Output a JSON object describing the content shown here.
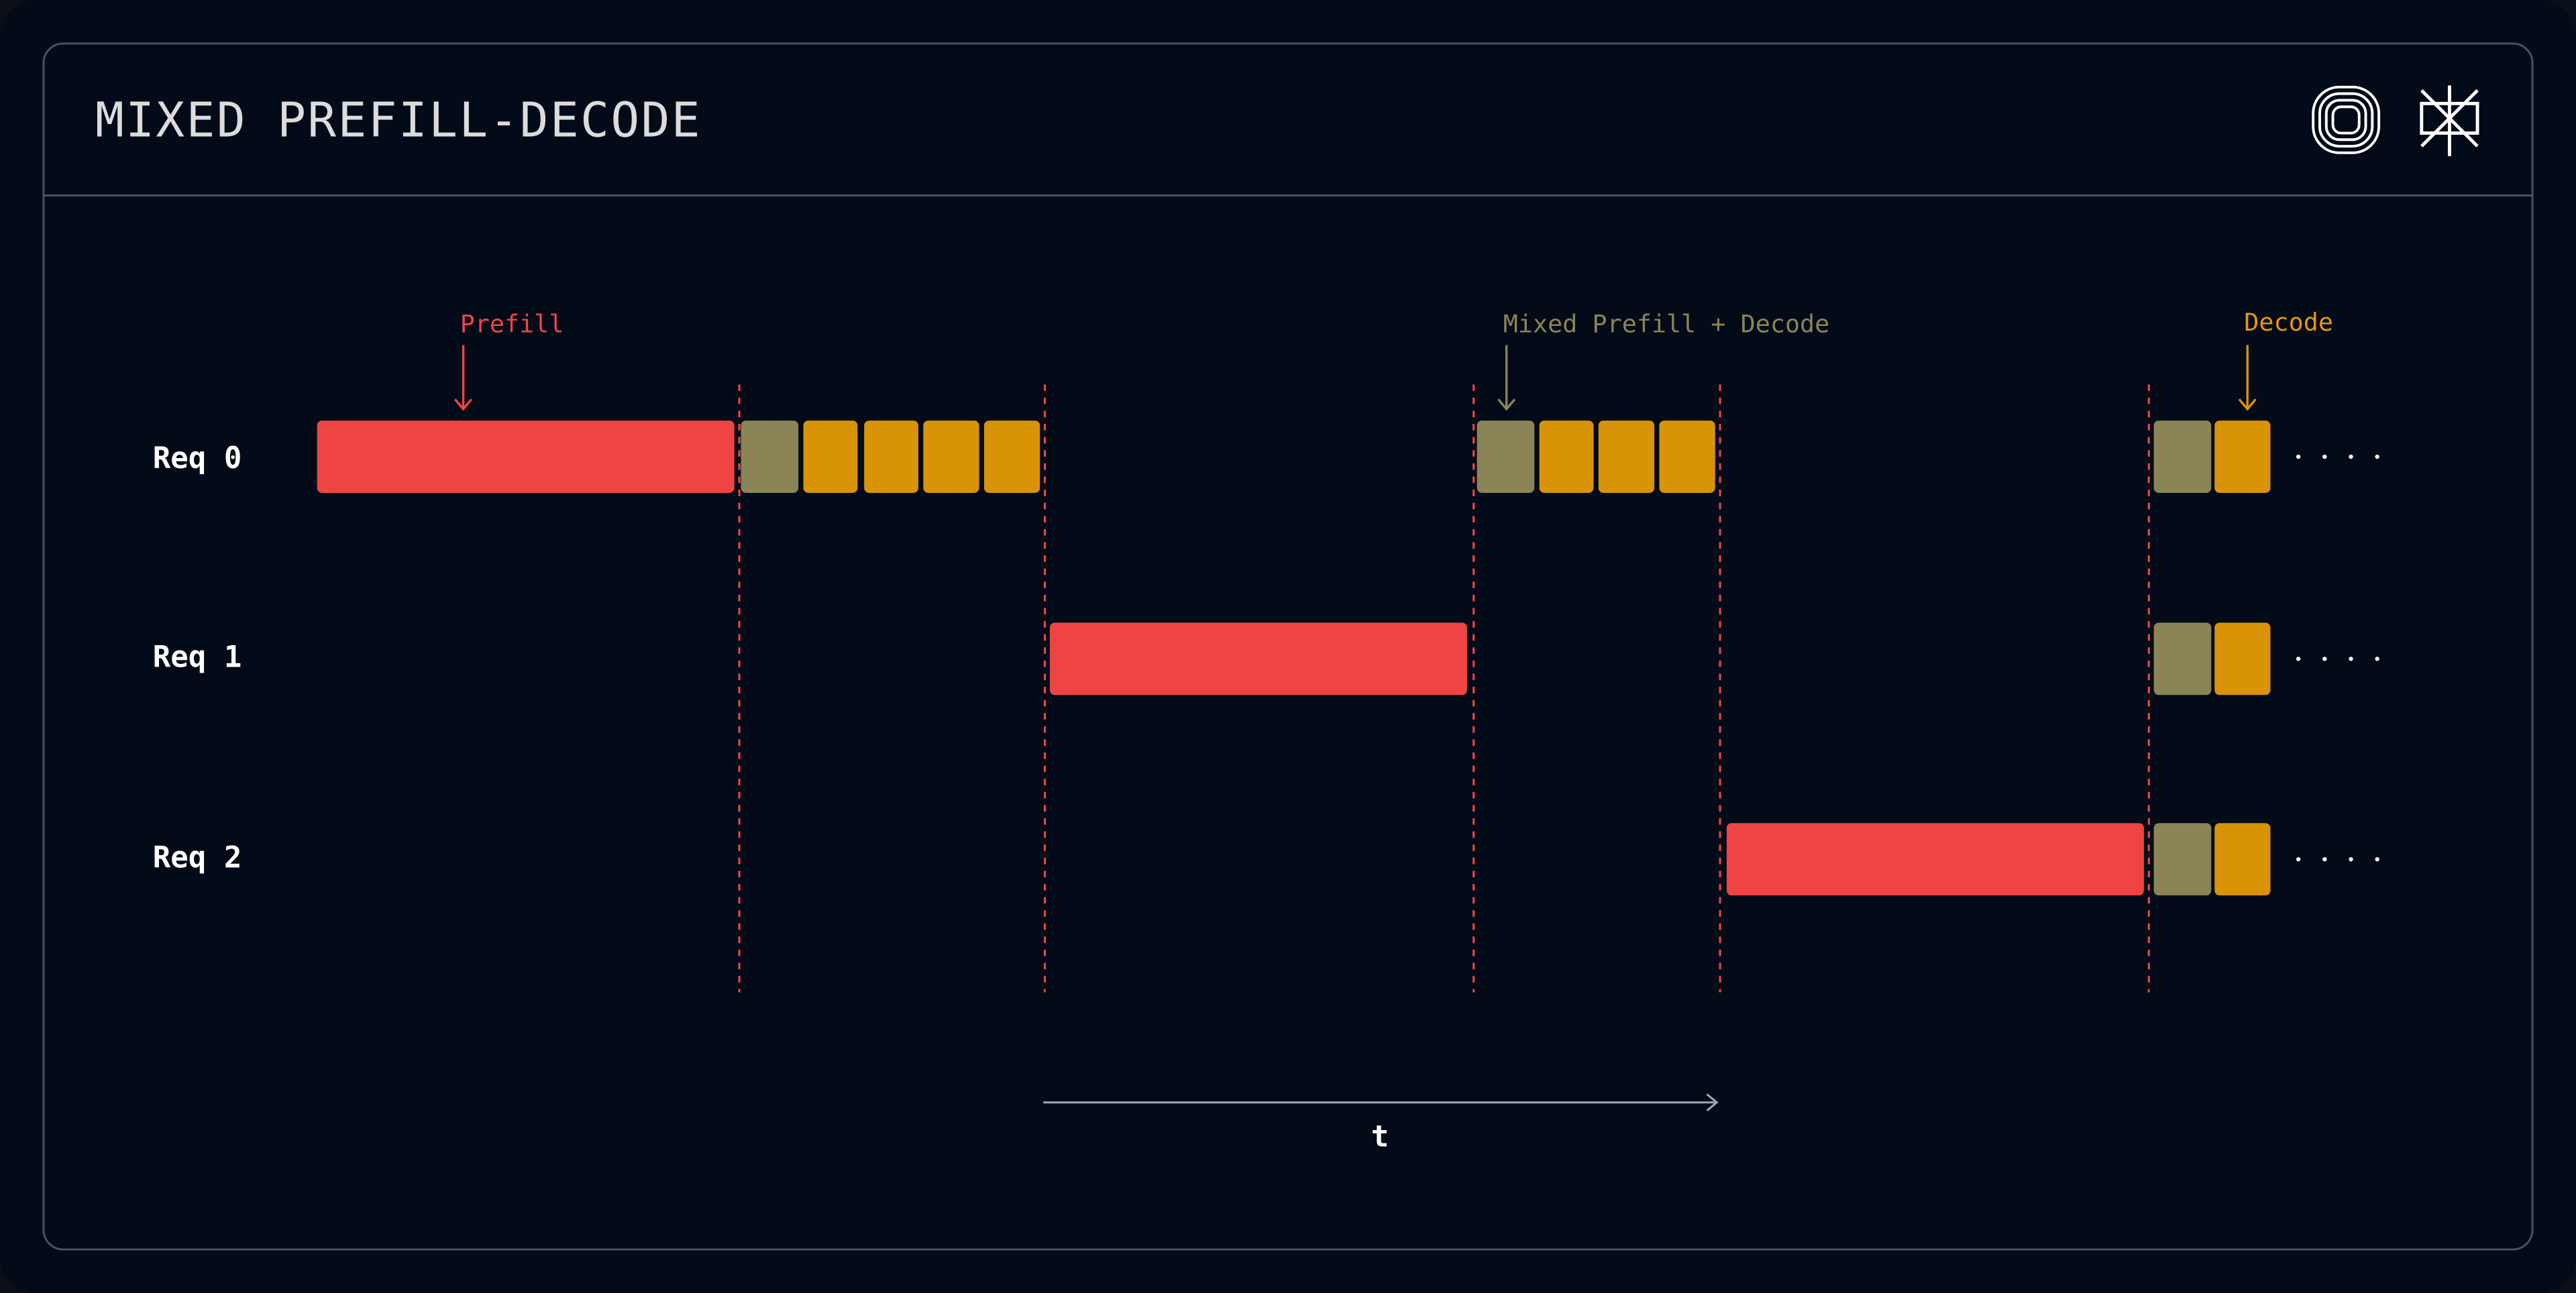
{
  "header": {
    "title": "MIXED PREFILL-DECODE"
  },
  "annotations": [
    "Prefill",
    "Mixed Prefill + Decode",
    "Decode"
  ],
  "rows": [
    "Req 0",
    "Req 1",
    "Req 2"
  ],
  "axis": {
    "label": "t"
  }
}
